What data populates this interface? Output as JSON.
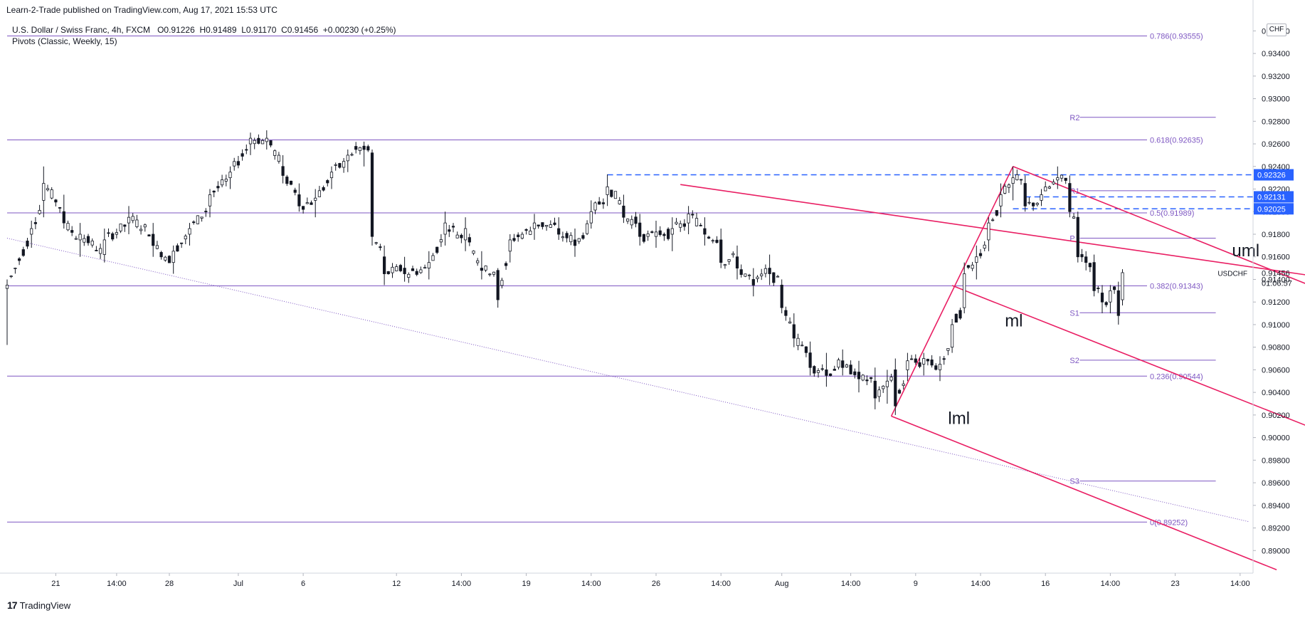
{
  "header": {
    "published": "Learn-2-Trade published on TradingView.com, Aug 17, 2021 15:53 UTC",
    "symbol_line": "U.S. Dollar / Swiss Franc, 4h, FXCM",
    "ohlc": {
      "o_label": "O",
      "o": "0.91226",
      "h_label": "H",
      "h": "0.91489",
      "l_label": "L",
      "l": "0.91170",
      "c_label": "C",
      "c": "0.91456",
      "change": "+0.00230 (+0.25%)"
    },
    "indicator": "Pivots (Classic, Weekly, 15)"
  },
  "currency": "CHF",
  "footer": {
    "brand": "TradingView",
    "brand_mark": "17"
  },
  "colors": {
    "fib": "#7e57c2",
    "pitchfork": "#e91e63",
    "dashed": "#2962ff",
    "badge_blue": "#2962ff",
    "candle": "#131722",
    "axis_text": "#131722",
    "grid": "#f0f3fa"
  },
  "chart_data": {
    "type": "candlestick",
    "timeframe": "4h",
    "symbol": "USDCHF",
    "ylim": [
      0.888,
      0.9376
    ],
    "y_ticks": [
      "0.93600",
      "0.93400",
      "0.93200",
      "0.93000",
      "0.92800",
      "0.92600",
      "0.92400",
      "0.92200",
      "0.92000",
      "0.91800",
      "0.91600",
      "0.91400",
      "0.91200",
      "0.91000",
      "0.90800",
      "0.90600",
      "0.90400",
      "0.90200",
      "0.90000",
      "0.89800",
      "0.89600",
      "0.89400",
      "0.89200",
      "0.89000"
    ],
    "x_tick_labels": [
      "21",
      "14:00",
      "28",
      "Jul",
      "6",
      "12",
      "14:00",
      "19",
      "14:00",
      "26",
      "14:00",
      "Aug",
      "14:00",
      "9",
      "14:00",
      "16",
      "14:00",
      "23",
      "14:00"
    ],
    "x_tick_slots": [
      12,
      27,
      40,
      57,
      73,
      96,
      112,
      128,
      144,
      160,
      176,
      191,
      208,
      224,
      240,
      256,
      272,
      288,
      304
    ],
    "fib_levels": [
      {
        "ratio": "0.786",
        "value": 0.93555,
        "label": "0.786(0.93555)"
      },
      {
        "ratio": "0.618",
        "value": 0.92635,
        "label": "0.618(0.92635)"
      },
      {
        "ratio": "0.5",
        "value": 0.91989,
        "label": "0.5(0.91989)"
      },
      {
        "ratio": "0.382",
        "value": 0.91343,
        "label": "0.382(0.91343)"
      },
      {
        "ratio": "0.236",
        "value": 0.90544,
        "label": "0.236(0.90544)"
      },
      {
        "ratio": "0",
        "value": 0.89252,
        "label": "0(0.89252)"
      }
    ],
    "pivots": [
      {
        "name": "R2",
        "value": 0.92835
      },
      {
        "name": "R1",
        "value": 0.92185
      },
      {
        "name": "P",
        "value": 0.91765
      },
      {
        "name": "S1",
        "value": 0.91105
      },
      {
        "name": "S2",
        "value": 0.90685
      },
      {
        "name": "S3",
        "value": 0.89615
      }
    ],
    "pivot_window": {
      "start_slot": 262,
      "end_slot": 298
    },
    "dashed_levels": [
      {
        "value": 0.92326,
        "label": "0.92326",
        "start_slot": 148
      },
      {
        "value": 0.92131,
        "label": "0.92131",
        "start_slot": 251
      },
      {
        "value": 0.92025,
        "label": "0.92025",
        "start_slot": 248
      }
    ],
    "last_price": {
      "value": 0.91456,
      "label": "0.91456",
      "symbol": "USDCHF",
      "countdown": "01:06:57"
    },
    "pitchfork": {
      "labels": [
        "uml",
        "ml",
        "lml"
      ],
      "label_anchors": [
        {
          "text": "uml",
          "slot": 302,
          "value": 0.91605
        },
        {
          "text": "ml",
          "slot": 246,
          "value": 0.90985
        },
        {
          "text": "lml",
          "slot": 232,
          "value": 0.9012
        }
      ],
      "p1": {
        "slot": 218,
        "value": 0.9019
      },
      "p2": {
        "slot": 248,
        "value": 0.924
      },
      "p3": {
        "slot": 166,
        "value": 0.9224
      },
      "lines": [
        {
          "from": {
            "slot": 218,
            "value": 0.9019
          },
          "to": {
            "slot": 248,
            "value": 0.924
          }
        },
        {
          "from": {
            "slot": 166,
            "value": 0.9224
          },
          "to": {
            "slot": 328,
            "value": 0.914
          }
        },
        {
          "from": {
            "slot": 218,
            "value": 0.9019
          },
          "to": {
            "slot": 313,
            "value": 0.8883
          }
        },
        {
          "from": {
            "slot": 248,
            "value": 0.924
          },
          "to": {
            "slot": 328,
            "value": 0.9125
          }
        },
        {
          "from": {
            "slot": 233,
            "value": 0.91346
          },
          "to": {
            "slot": 328,
            "value": 0.89997
          }
        }
      ]
    },
    "trendline_dotted": {
      "from": {
        "slot": 0,
        "value": 0.91765
      },
      "to": {
        "slot": 306,
        "value": 0.89257
      }
    },
    "ohlc_anchors": [
      {
        "i": 0,
        "o": 0.9132,
        "h": 0.914,
        "l": 0.9082,
        "c": 0.9135
      },
      {
        "i": 6,
        "o": 0.918,
        "h": 0.9192,
        "l": 0.9168,
        "c": 0.9185
      },
      {
        "i": 9,
        "o": 0.921,
        "h": 0.924,
        "l": 0.9195,
        "c": 0.9225
      },
      {
        "i": 14,
        "o": 0.92,
        "h": 0.9215,
        "l": 0.9185,
        "c": 0.919
      },
      {
        "i": 18,
        "o": 0.9175,
        "h": 0.919,
        "l": 0.916,
        "c": 0.918
      },
      {
        "i": 24,
        "o": 0.9162,
        "h": 0.9185,
        "l": 0.9155,
        "c": 0.9175
      },
      {
        "i": 30,
        "o": 0.919,
        "h": 0.9205,
        "l": 0.918,
        "c": 0.9195
      },
      {
        "i": 36,
        "o": 0.918,
        "h": 0.919,
        "l": 0.916,
        "c": 0.917
      },
      {
        "i": 41,
        "o": 0.9155,
        "h": 0.917,
        "l": 0.9145,
        "c": 0.9165
      },
      {
        "i": 45,
        "o": 0.918,
        "h": 0.919,
        "l": 0.917,
        "c": 0.9185
      },
      {
        "i": 50,
        "o": 0.9205,
        "h": 0.922,
        "l": 0.9195,
        "c": 0.9215
      },
      {
        "i": 55,
        "o": 0.923,
        "h": 0.924,
        "l": 0.922,
        "c": 0.9235
      },
      {
        "i": 60,
        "o": 0.926,
        "h": 0.927,
        "l": 0.925,
        "c": 0.9265
      },
      {
        "i": 64,
        "o": 0.9262,
        "h": 0.9272,
        "l": 0.9255,
        "c": 0.9265
      },
      {
        "i": 68,
        "o": 0.924,
        "h": 0.925,
        "l": 0.9225,
        "c": 0.9232
      },
      {
        "i": 72,
        "o": 0.9215,
        "h": 0.9225,
        "l": 0.92,
        "c": 0.9205
      },
      {
        "i": 76,
        "o": 0.921,
        "h": 0.922,
        "l": 0.9195,
        "c": 0.9212
      },
      {
        "i": 80,
        "o": 0.923,
        "h": 0.924,
        "l": 0.922,
        "c": 0.9235
      },
      {
        "i": 84,
        "o": 0.9245,
        "h": 0.9255,
        "l": 0.9235,
        "c": 0.925
      },
      {
        "i": 88,
        "o": 0.9258,
        "h": 0.9262,
        "l": 0.924,
        "c": 0.9255
      },
      {
        "i": 90,
        "o": 0.9252,
        "h": 0.9255,
        "l": 0.917,
        "c": 0.9178
      },
      {
        "i": 93,
        "o": 0.916,
        "h": 0.917,
        "l": 0.9135,
        "c": 0.9145
      },
      {
        "i": 98,
        "o": 0.915,
        "h": 0.916,
        "l": 0.9138,
        "c": 0.9145
      },
      {
        "i": 104,
        "o": 0.915,
        "h": 0.9165,
        "l": 0.914,
        "c": 0.9155
      },
      {
        "i": 108,
        "o": 0.918,
        "h": 0.92,
        "l": 0.917,
        "c": 0.919
      },
      {
        "i": 113,
        "o": 0.9175,
        "h": 0.9195,
        "l": 0.9165,
        "c": 0.9185
      },
      {
        "i": 117,
        "o": 0.915,
        "h": 0.9165,
        "l": 0.914,
        "c": 0.9148
      },
      {
        "i": 121,
        "o": 0.9148,
        "h": 0.915,
        "l": 0.9115,
        "c": 0.9122
      },
      {
        "i": 124,
        "o": 0.9165,
        "h": 0.918,
        "l": 0.9155,
        "c": 0.9175
      },
      {
        "i": 130,
        "o": 0.9185,
        "h": 0.9198,
        "l": 0.9175,
        "c": 0.919
      },
      {
        "i": 136,
        "o": 0.9185,
        "h": 0.9195,
        "l": 0.9175,
        "c": 0.918
      },
      {
        "i": 140,
        "o": 0.9175,
        "h": 0.9185,
        "l": 0.916,
        "c": 0.917
      },
      {
        "i": 144,
        "o": 0.919,
        "h": 0.921,
        "l": 0.9185,
        "c": 0.92
      },
      {
        "i": 148,
        "o": 0.9215,
        "h": 0.9233,
        "l": 0.9205,
        "c": 0.9222
      },
      {
        "i": 152,
        "o": 0.9205,
        "h": 0.9215,
        "l": 0.919,
        "c": 0.9195
      },
      {
        "i": 156,
        "o": 0.919,
        "h": 0.9198,
        "l": 0.917,
        "c": 0.9178
      },
      {
        "i": 160,
        "o": 0.9178,
        "h": 0.9192,
        "l": 0.9168,
        "c": 0.9182
      },
      {
        "i": 164,
        "o": 0.918,
        "h": 0.9195,
        "l": 0.9165,
        "c": 0.9185
      },
      {
        "i": 168,
        "o": 0.919,
        "h": 0.9205,
        "l": 0.918,
        "c": 0.9198
      },
      {
        "i": 172,
        "o": 0.9185,
        "h": 0.9195,
        "l": 0.917,
        "c": 0.918
      },
      {
        "i": 176,
        "o": 0.9175,
        "h": 0.9185,
        "l": 0.915,
        "c": 0.9155
      },
      {
        "i": 180,
        "o": 0.916,
        "h": 0.917,
        "l": 0.914,
        "c": 0.915
      },
      {
        "i": 184,
        "o": 0.914,
        "h": 0.915,
        "l": 0.9125,
        "c": 0.9135
      },
      {
        "i": 188,
        "o": 0.915,
        "h": 0.9162,
        "l": 0.9135,
        "c": 0.9145
      },
      {
        "i": 191,
        "o": 0.9135,
        "h": 0.914,
        "l": 0.911,
        "c": 0.9115
      },
      {
        "i": 194,
        "o": 0.91,
        "h": 0.911,
        "l": 0.908,
        "c": 0.9088
      },
      {
        "i": 198,
        "o": 0.9075,
        "h": 0.9085,
        "l": 0.9055,
        "c": 0.9062
      },
      {
        "i": 202,
        "o": 0.906,
        "h": 0.9075,
        "l": 0.9045,
        "c": 0.9055
      },
      {
        "i": 206,
        "o": 0.9068,
        "h": 0.9078,
        "l": 0.9055,
        "c": 0.9062
      },
      {
        "i": 210,
        "o": 0.9058,
        "h": 0.9068,
        "l": 0.904,
        "c": 0.9052
      },
      {
        "i": 214,
        "o": 0.905,
        "h": 0.9062,
        "l": 0.9025,
        "c": 0.9035
      },
      {
        "i": 217,
        "o": 0.9045,
        "h": 0.906,
        "l": 0.903,
        "c": 0.905
      },
      {
        "i": 219,
        "o": 0.906,
        "h": 0.907,
        "l": 0.902,
        "c": 0.9028
      },
      {
        "i": 222,
        "o": 0.906,
        "h": 0.9075,
        "l": 0.905,
        "c": 0.9068
      },
      {
        "i": 226,
        "o": 0.9065,
        "h": 0.9075,
        "l": 0.9055,
        "c": 0.907
      },
      {
        "i": 230,
        "o": 0.906,
        "h": 0.9072,
        "l": 0.905,
        "c": 0.9065
      },
      {
        "i": 233,
        "o": 0.908,
        "h": 0.9105,
        "l": 0.9075,
        "c": 0.91
      },
      {
        "i": 236,
        "o": 0.9115,
        "h": 0.9155,
        "l": 0.911,
        "c": 0.9145
      },
      {
        "i": 239,
        "o": 0.9155,
        "h": 0.917,
        "l": 0.914,
        "c": 0.916
      },
      {
        "i": 242,
        "o": 0.9175,
        "h": 0.9195,
        "l": 0.9165,
        "c": 0.919
      },
      {
        "i": 245,
        "o": 0.9205,
        "h": 0.9225,
        "l": 0.9195,
        "c": 0.9215
      },
      {
        "i": 248,
        "o": 0.9225,
        "h": 0.924,
        "l": 0.921,
        "c": 0.923
      },
      {
        "i": 251,
        "o": 0.9225,
        "h": 0.9232,
        "l": 0.92,
        "c": 0.9205
      },
      {
        "i": 255,
        "o": 0.921,
        "h": 0.922,
        "l": 0.9205,
        "c": 0.9215
      },
      {
        "i": 259,
        "o": 0.9228,
        "h": 0.924,
        "l": 0.922,
        "c": 0.923
      },
      {
        "i": 262,
        "o": 0.9225,
        "h": 0.9232,
        "l": 0.9195,
        "c": 0.92
      },
      {
        "i": 264,
        "o": 0.9195,
        "h": 0.92,
        "l": 0.9155,
        "c": 0.916
      },
      {
        "i": 266,
        "o": 0.916,
        "h": 0.9165,
        "l": 0.9148,
        "c": 0.9155
      },
      {
        "i": 268,
        "o": 0.9155,
        "h": 0.9162,
        "l": 0.9125,
        "c": 0.913
      },
      {
        "i": 270,
        "o": 0.9128,
        "h": 0.9135,
        "l": 0.911,
        "c": 0.912
      },
      {
        "i": 272,
        "o": 0.912,
        "h": 0.9135,
        "l": 0.911,
        "c": 0.913
      },
      {
        "i": 274,
        "o": 0.913,
        "h": 0.9138,
        "l": 0.91,
        "c": 0.9108
      },
      {
        "i": 275,
        "o": 0.9122,
        "h": 0.9149,
        "l": 0.9117,
        "c": 0.9146
      }
    ]
  }
}
